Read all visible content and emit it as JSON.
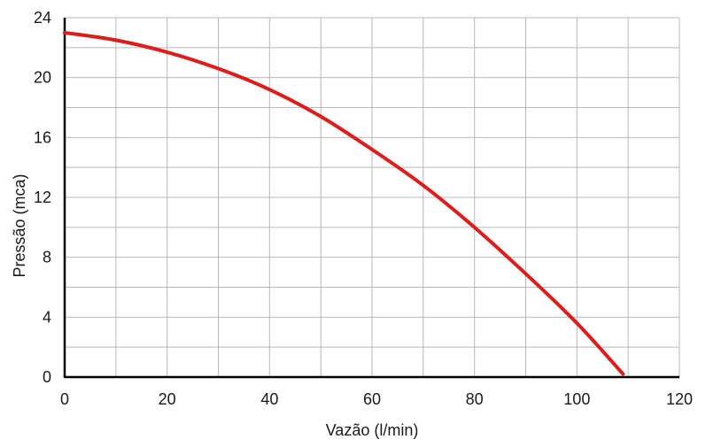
{
  "chart_data": {
    "type": "line",
    "xlabel": "Vazão (l/min)",
    "ylabel": "Pressão (mca)",
    "xlim": [
      0,
      120
    ],
    "ylim": [
      0,
      24
    ],
    "x_ticks": [
      0,
      20,
      40,
      60,
      80,
      100,
      120
    ],
    "y_ticks": [
      0,
      4,
      8,
      12,
      16,
      20,
      24
    ],
    "x_minor_step": 10,
    "y_minor_step": 2,
    "grid": true,
    "colors": {
      "curve": "#dd1c1c",
      "grid": "#b8b8b8",
      "axis": "#000000"
    },
    "series": [
      {
        "x": [
          0,
          10,
          20,
          30,
          40,
          50,
          60,
          70,
          80,
          90,
          100,
          109
        ],
        "y": [
          23.0,
          22.5,
          21.7,
          20.6,
          19.2,
          17.4,
          15.2,
          12.8,
          10.0,
          6.9,
          3.6,
          0.2
        ]
      }
    ]
  }
}
